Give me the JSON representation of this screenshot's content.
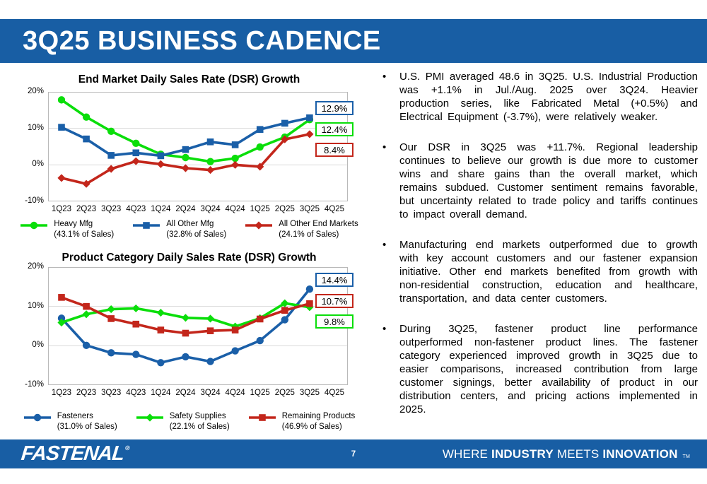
{
  "slide": {
    "title": "3Q25 BUSINESS CADENCE",
    "page_number": "7",
    "footer": {
      "logo_text": "FASTENAL",
      "logo_reg_mark": "®",
      "tagline": {
        "word1": "WHERE",
        "word2": "INDUSTRY",
        "word3": "MEETS",
        "word4": "INNOVATION",
        "tm": "TM"
      }
    },
    "colors": {
      "brand_blue": "#185EA4",
      "series_green": "#0ADE0A",
      "series_blue": "#1A5FA8",
      "series_red": "#C3261B"
    }
  },
  "bullets": [
    "U.S. PMI averaged 48.6 in 3Q25. U.S. Industrial Production was +1.1% in Jul./Aug. 2025 over 3Q24. Heavier production series, like Fabricated Metal (+0.5%) and Electrical Equipment (-3.7%), were relatively weaker.",
    "Our DSR in 3Q25 was +11.7%. Regional leadership continues to believe our growth is due more to customer wins and share gains than the overall market, which remains subdued. Customer sentiment remains favorable, but uncertainty related to trade policy and tariffs continues to impact overall demand.",
    "Manufacturing end markets outperformed due to growth with key account customers and our fastener expansion initiative. Other end markets benefited from growth with non-residential construction, education and healthcare, transportation, and data center customers.",
    "During 3Q25, fastener product line performance outperformed non-fastener product lines. The fastener category experienced improved growth in 3Q25 due to easier comparisons, increased contribution from large customer signings, better availability of product in our distribution centers, and pricing actions implemented in 2025."
  ],
  "chart_data": [
    {
      "type": "line",
      "title": "End Market Daily Sales Rate (DSR) Growth",
      "xlabel": "",
      "ylabel": "",
      "ylim": [
        -10,
        20
      ],
      "grid": true,
      "legend_position": "bottom",
      "y_ticks": [
        {
          "value": 20,
          "label": "20%"
        },
        {
          "value": 10,
          "label": "10%"
        },
        {
          "value": 0,
          "label": "0%"
        },
        {
          "value": -10,
          "label": "-10%"
        }
      ],
      "categories": [
        "1Q23",
        "2Q23",
        "3Q23",
        "4Q23",
        "1Q24",
        "2Q24",
        "3Q24",
        "4Q24",
        "1Q25",
        "2Q25",
        "3Q25",
        "4Q25"
      ],
      "series": [
        {
          "id": "heavy-mfg",
          "name": "Heavy Mfg",
          "share": "(43.1% of Sales)",
          "color": "#0ADE0A",
          "marker": "circle",
          "values": [
            17.8,
            13.1,
            9.2,
            5.9,
            2.9,
            2.0,
            0.9,
            1.8,
            4.9,
            7.6,
            12.4
          ],
          "end_label": "12.4%"
        },
        {
          "id": "all-other-mfg",
          "name": "All Other Mfg",
          "share": "(32.8% of Sales)",
          "color": "#1A5FA8",
          "marker": "square",
          "values": [
            10.3,
            7.1,
            2.6,
            3.3,
            2.5,
            4.2,
            6.3,
            5.5,
            9.7,
            11.4,
            12.9
          ],
          "end_label": "12.9%"
        },
        {
          "id": "all-other-end-markets",
          "name": "All Other End Markets",
          "share": "(24.1% of Sales)",
          "color": "#C3261B",
          "marker": "diamond",
          "values": [
            -3.6,
            -5.2,
            -1.1,
            1.0,
            0.2,
            -0.9,
            -1.4,
            0.0,
            -0.5,
            7.0,
            8.4
          ],
          "end_label": "8.4%"
        }
      ]
    },
    {
      "type": "line",
      "title": "Product Category Daily Sales Rate (DSR) Growth",
      "xlabel": "",
      "ylabel": "",
      "ylim": [
        -10,
        20
      ],
      "grid": true,
      "legend_position": "bottom",
      "y_ticks": [
        {
          "value": 20,
          "label": "20%"
        },
        {
          "value": 10,
          "label": "10%"
        },
        {
          "value": 0,
          "label": "0%"
        },
        {
          "value": -10,
          "label": "-10%"
        }
      ],
      "categories": [
        "1Q23",
        "2Q23",
        "3Q23",
        "4Q23",
        "1Q24",
        "2Q24",
        "3Q24",
        "4Q24",
        "1Q25",
        "2Q25",
        "3Q25",
        "4Q25"
      ],
      "series": [
        {
          "id": "fasteners",
          "name": "Fasteners",
          "share": "(31.0% of Sales)",
          "color": "#1A5FA8",
          "marker": "circle",
          "values": [
            7.0,
            0.1,
            -1.8,
            -2.2,
            -4.3,
            -2.8,
            -4.0,
            -1.3,
            1.3,
            6.6,
            14.4
          ],
          "end_label": "14.4%"
        },
        {
          "id": "safety-supplies",
          "name": "Safety Supplies",
          "share": "(22.1% of Sales)",
          "color": "#0ADE0A",
          "marker": "diamond",
          "values": [
            5.9,
            8.0,
            9.3,
            9.5,
            8.4,
            7.1,
            6.9,
            4.9,
            7.0,
            10.8,
            9.8
          ],
          "end_label": "9.8%"
        },
        {
          "id": "remaining-products",
          "name": "Remaining Products",
          "share": "(46.9% of Sales)",
          "color": "#C3261B",
          "marker": "square",
          "values": [
            12.3,
            10.0,
            6.9,
            5.5,
            4.0,
            3.2,
            3.8,
            4.0,
            6.8,
            9.0,
            10.7
          ],
          "end_label": "10.7%"
        }
      ]
    }
  ]
}
